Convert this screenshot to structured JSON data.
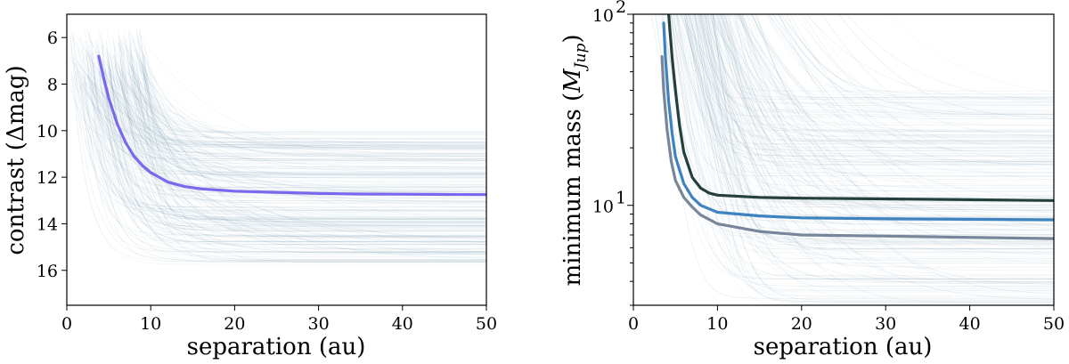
{
  "chart_data": [
    {
      "type": "line",
      "xlabel": "separation (au)",
      "ylabel": "contrast (Δmag)",
      "xlim": [
        0,
        50
      ],
      "ylim": [
        17.5,
        5
      ],
      "y_inverted": true,
      "x_ticks": [
        "0",
        "10",
        "20",
        "30",
        "40",
        "50"
      ],
      "y_ticks": [
        "6",
        "8",
        "10",
        "12",
        "14",
        "16"
      ],
      "grid": false,
      "background_curves": {
        "color": "#4a7a98",
        "description_count": 220
      },
      "series": [
        {
          "color": "#7b68ee",
          "points": [
            [
              3.8,
              6.8
            ],
            [
              4.5,
              7.9
            ],
            [
              5.0,
              8.6
            ],
            [
              6.0,
              9.7
            ],
            [
              7.0,
              10.5
            ],
            [
              8.0,
              11.1
            ],
            [
              9.0,
              11.5
            ],
            [
              10.0,
              11.8
            ],
            [
              12.0,
              12.2
            ],
            [
              14.0,
              12.4
            ],
            [
              16.0,
              12.5
            ],
            [
              20.0,
              12.6
            ],
            [
              25.0,
              12.65
            ],
            [
              30.0,
              12.7
            ],
            [
              35.0,
              12.72
            ],
            [
              40.0,
              12.73
            ],
            [
              45.0,
              12.74
            ],
            [
              50.0,
              12.75
            ]
          ]
        }
      ]
    },
    {
      "type": "line",
      "xlabel": "separation (au)",
      "ylabel": "minimum mass (M_Jup)",
      "ylabel_main": "minimum mass (",
      "ylabel_sym": "M",
      "ylabel_sub": "Jup",
      "ylabel_close": ")",
      "xlim": [
        0,
        50
      ],
      "ylim": [
        3,
        100
      ],
      "y_scale": "log",
      "x_ticks": [
        "0",
        "10",
        "20",
        "30",
        "40",
        "50"
      ],
      "y_tick_base": "10",
      "y_ticks_exp": [
        "2",
        "1"
      ],
      "grid": false,
      "background_curves": {
        "color": "#4a7a98",
        "description_count": 220
      },
      "series": [
        {
          "color": "#243f3c",
          "points": [
            [
              4.2,
              100
            ],
            [
              4.6,
              60
            ],
            [
              5.0,
              40
            ],
            [
              5.5,
              26
            ],
            [
              6.0,
              19
            ],
            [
              7.0,
              14
            ],
            [
              8.0,
              12.3
            ],
            [
              9.0,
              11.6
            ],
            [
              10.0,
              11.3
            ],
            [
              15.0,
              11.0
            ],
            [
              20.0,
              10.9
            ],
            [
              30.0,
              10.8
            ],
            [
              40.0,
              10.7
            ],
            [
              50.0,
              10.6
            ]
          ]
        },
        {
          "color": "#3f82c0",
          "points": [
            [
              3.6,
              90
            ],
            [
              3.8,
              60
            ],
            [
              4.2,
              35
            ],
            [
              4.6,
              24
            ],
            [
              5.0,
              18
            ],
            [
              6.0,
              13
            ],
            [
              7.0,
              11.0
            ],
            [
              8.0,
              10.0
            ],
            [
              10.0,
              9.2
            ],
            [
              15.0,
              8.8
            ],
            [
              20.0,
              8.6
            ],
            [
              30.0,
              8.5
            ],
            [
              40.0,
              8.45
            ],
            [
              50.0,
              8.4
            ]
          ]
        },
        {
          "color": "#77869a",
          "points": [
            [
              3.4,
              60
            ],
            [
              3.6,
              40
            ],
            [
              4.0,
              25
            ],
            [
              4.5,
              17
            ],
            [
              5.0,
              13.5
            ],
            [
              6.0,
              11.0
            ],
            [
              7.0,
              9.8
            ],
            [
              8.0,
              8.9
            ],
            [
              10.0,
              8.0
            ],
            [
              15.0,
              7.3
            ],
            [
              20.0,
              7.0
            ],
            [
              30.0,
              6.9
            ],
            [
              40.0,
              6.8
            ],
            [
              50.0,
              6.7
            ]
          ]
        }
      ]
    }
  ]
}
